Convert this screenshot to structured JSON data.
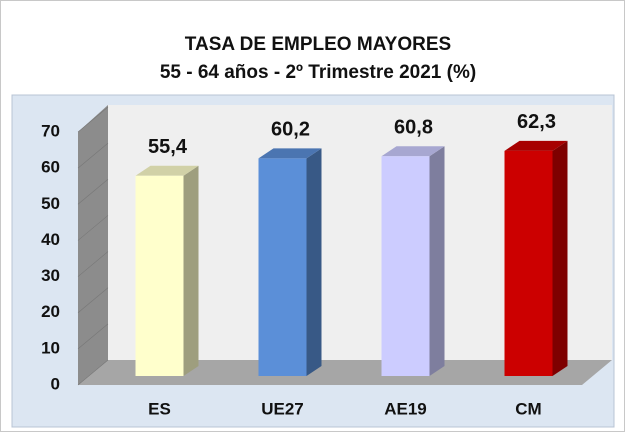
{
  "chart_data": {
    "type": "bar3d",
    "title": "TASA DE EMPLEO MAYORES",
    "subtitle": "55 - 64 años  - 2º Trimestre 2021 (%)",
    "categories": [
      "ES",
      "UE27",
      "AE19",
      "CM"
    ],
    "values": [
      55.4,
      60.2,
      60.8,
      62.3
    ],
    "value_labels": [
      "55,4",
      "60,2",
      "60,8",
      "62,3"
    ],
    "colors": [
      "#ffffcc",
      "#5b8fd8",
      "#ccccff",
      "#cc0000"
    ],
    "ylim": [
      0,
      70
    ],
    "yticks": [
      0,
      10,
      20,
      30,
      40,
      50,
      60,
      70
    ]
  }
}
